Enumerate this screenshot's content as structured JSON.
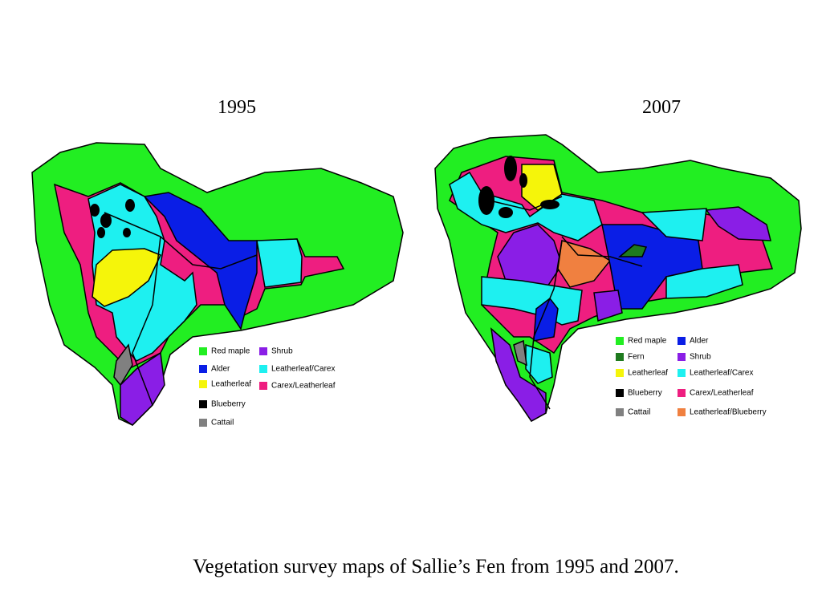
{
  "slide": {
    "caption": "Vegetation survey maps of Sallie’s Fen from 1995 and 2007."
  },
  "maps": [
    {
      "title": "1995",
      "legend": [
        {
          "label": "Red maple",
          "color": "#22ee22"
        },
        {
          "label": "Alder",
          "color": "#0a1ee6"
        },
        {
          "label": "Leatherleaf",
          "color": "#f5f50a"
        },
        {
          "label": "Blueberry",
          "color": "#000000"
        },
        {
          "label": "Cattail",
          "color": "#808080"
        },
        {
          "label": "Shrub",
          "color": "#8a1ee6"
        },
        {
          "label": "Leatherleaf/Carex",
          "color": "#1ef0f0"
        },
        {
          "label": "Carex/Leatherleaf",
          "color": "#ee1e80"
        }
      ]
    },
    {
      "title": "2007",
      "legend": [
        {
          "label": "Red maple",
          "color": "#22ee22"
        },
        {
          "label": "Fern",
          "color": "#1e7a1e"
        },
        {
          "label": "Leatherleaf",
          "color": "#f5f50a"
        },
        {
          "label": "Blueberry",
          "color": "#000000"
        },
        {
          "label": "Cattail",
          "color": "#808080"
        },
        {
          "label": "Alder",
          "color": "#0a1ee6"
        },
        {
          "label": "Shrub",
          "color": "#8a1ee6"
        },
        {
          "label": "Leatherleaf/Carex",
          "color": "#1ef0f0"
        },
        {
          "label": "Carex/Leatherleaf",
          "color": "#ee1e80"
        },
        {
          "label": "Leatherleaf/Blueberry",
          "color": "#f08040"
        }
      ]
    }
  ]
}
